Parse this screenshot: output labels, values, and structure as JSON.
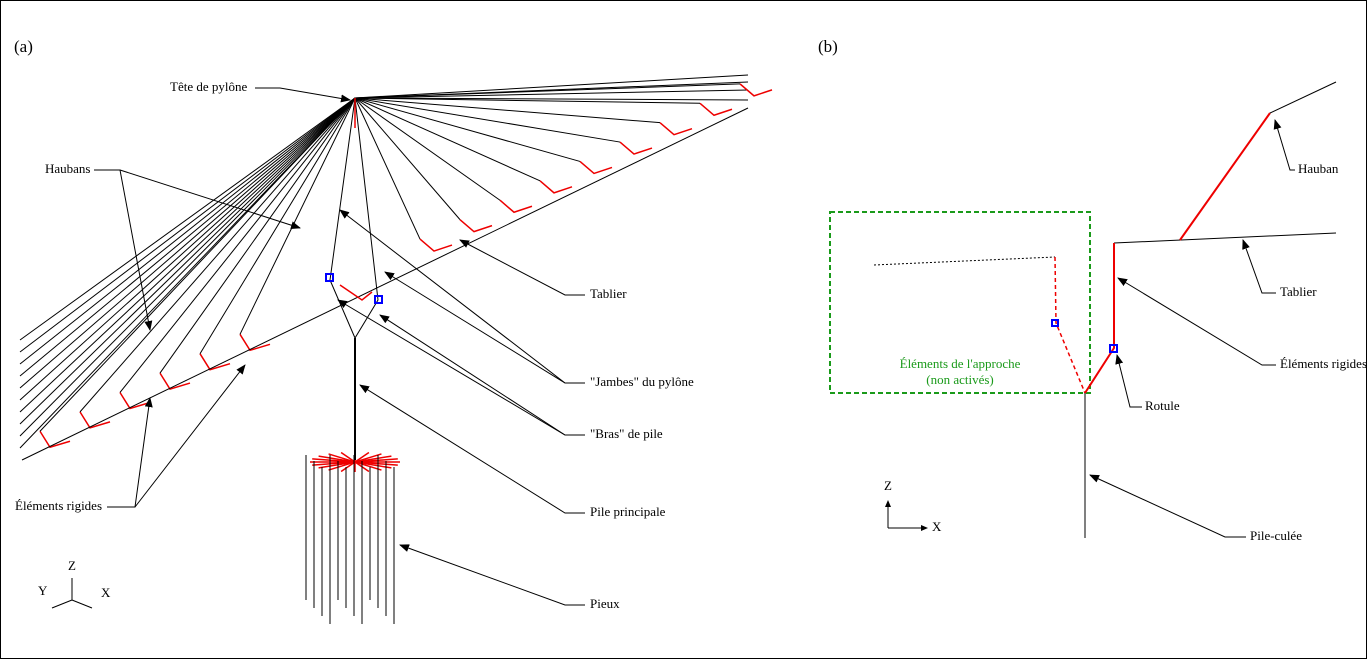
{
  "panels": [
    {
      "label": "(a)",
      "annotations": [
        "Tête de pylône",
        "Haubans",
        "Éléments rigides",
        "Tablier",
        "\"Jambes\" du pylône",
        "\"Bras\" de pile",
        "Pile principale",
        "Pieux"
      ],
      "axes": [
        "Z",
        "Y",
        "X"
      ]
    },
    {
      "label": "(b)",
      "annotations": [
        "Hauban",
        "Tablier",
        "Éléments rigides",
        "Rotule",
        "Pile-culée"
      ],
      "approach_box": [
        "Éléments de l'approche",
        "(non activés)"
      ],
      "axes": [
        "Z",
        "X"
      ]
    }
  ]
}
